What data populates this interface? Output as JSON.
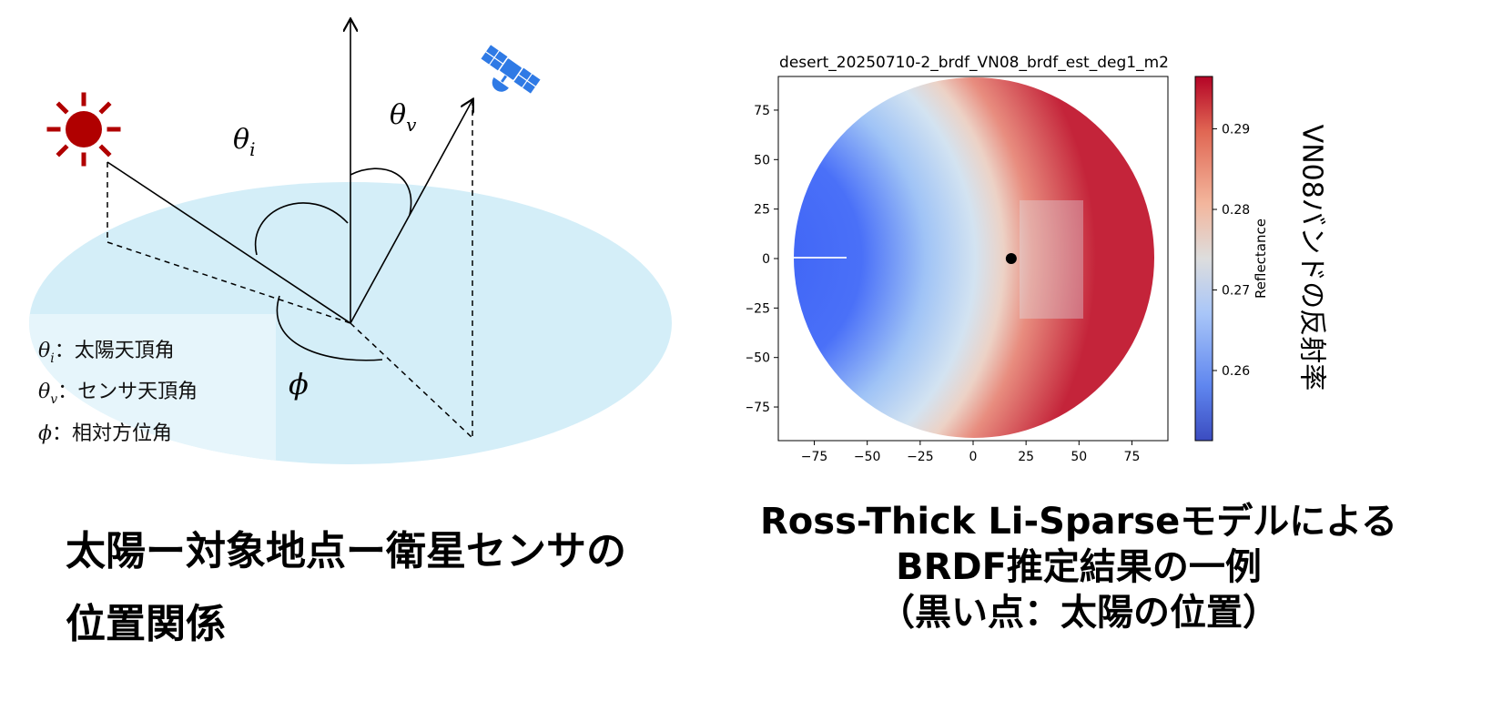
{
  "diagram": {
    "angle_labels": {
      "theta_i": "θ",
      "theta_i_sub": "i",
      "theta_v": "θ",
      "theta_v_sub": "v",
      "phi": "ϕ"
    },
    "legend": [
      {
        "symbol": "θ",
        "sub": "i",
        "text": "：太陽天頂角"
      },
      {
        "symbol": "θ",
        "sub": "v",
        "text": "：センサ天頂角"
      },
      {
        "symbol": "ϕ",
        "sub": "",
        "text": "：相対方位角"
      }
    ],
    "icons": [
      "sun-icon",
      "satellite-icon"
    ],
    "colors": {
      "ground": "#d4eef8",
      "legend_box": "#e6f5fb",
      "sun": "#b00000",
      "satellite": "#2f7ae5"
    }
  },
  "chart_data": {
    "type": "heatmap",
    "title": "desert_20250710-2_brdf_VN08_brdf_est_deg1_m2",
    "xticks": [
      -75,
      -50,
      -25,
      0,
      25,
      50,
      75
    ],
    "yticks": [
      75,
      50,
      25,
      0,
      -25,
      -50,
      -75
    ],
    "xlim": [
      -92,
      92
    ],
    "ylim": [
      -92,
      92
    ],
    "colorbar": {
      "label": "Reflectance",
      "ticks": [
        0.29,
        0.28,
        0.27,
        0.26
      ],
      "range": [
        0.2513,
        0.2965
      ],
      "colormap": "coolwarm"
    },
    "sun_position": [
      18,
      0
    ],
    "side_label": "VN08バンドの反射率"
  },
  "captions": {
    "left": [
      "太陽ー対象地点ー衛星センサの",
      "位置関係"
    ],
    "right": [
      "Ross-Thick Li-Sparseモデルによる",
      "BRDF推定結果の一例",
      "（黒い点：太陽の位置）"
    ]
  }
}
